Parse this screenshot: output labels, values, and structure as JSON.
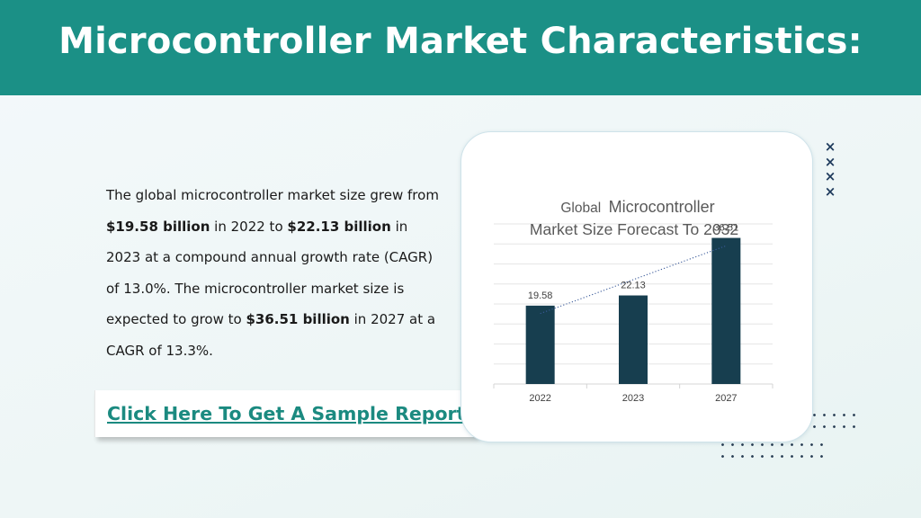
{
  "header": {
    "title": "Microcontroller Market Characteristics:"
  },
  "body": {
    "t1": "The global microcontroller market size grew from ",
    "v1": "$19.58 billion",
    "t2": " in 2022 to ",
    "v2": "$22.13 billion",
    "t3": " in 2023 at a compound annual growth rate (CAGR) of 13.0%. The microcontroller market size is expected to grow to ",
    "v3": "$36.51 billion",
    "t4": " in 2027 at a CAGR of 13.3%."
  },
  "cta": {
    "label": "Click Here To Get A Sample Report"
  },
  "decor": {
    "cross_icon": "×"
  },
  "colors": {
    "header": "#1b9086",
    "bar": "#173e4f",
    "trend": "#3a5a9a",
    "link": "#1b8a80"
  },
  "chart_data": {
    "type": "bar",
    "title_line1_a": "Global",
    "title_line1_b": "Microcontroller",
    "title_line2": "Market Size Forecast To 2032",
    "categories": [
      "2022",
      "2023",
      "2027"
    ],
    "values": [
      19.58,
      22.13,
      36.51
    ],
    "value_labels": [
      "19.58",
      "22.13",
      "36.51"
    ],
    "ylim": [
      0,
      40
    ],
    "grid": true,
    "trendline": "linear, dotted",
    "legend": "none"
  }
}
